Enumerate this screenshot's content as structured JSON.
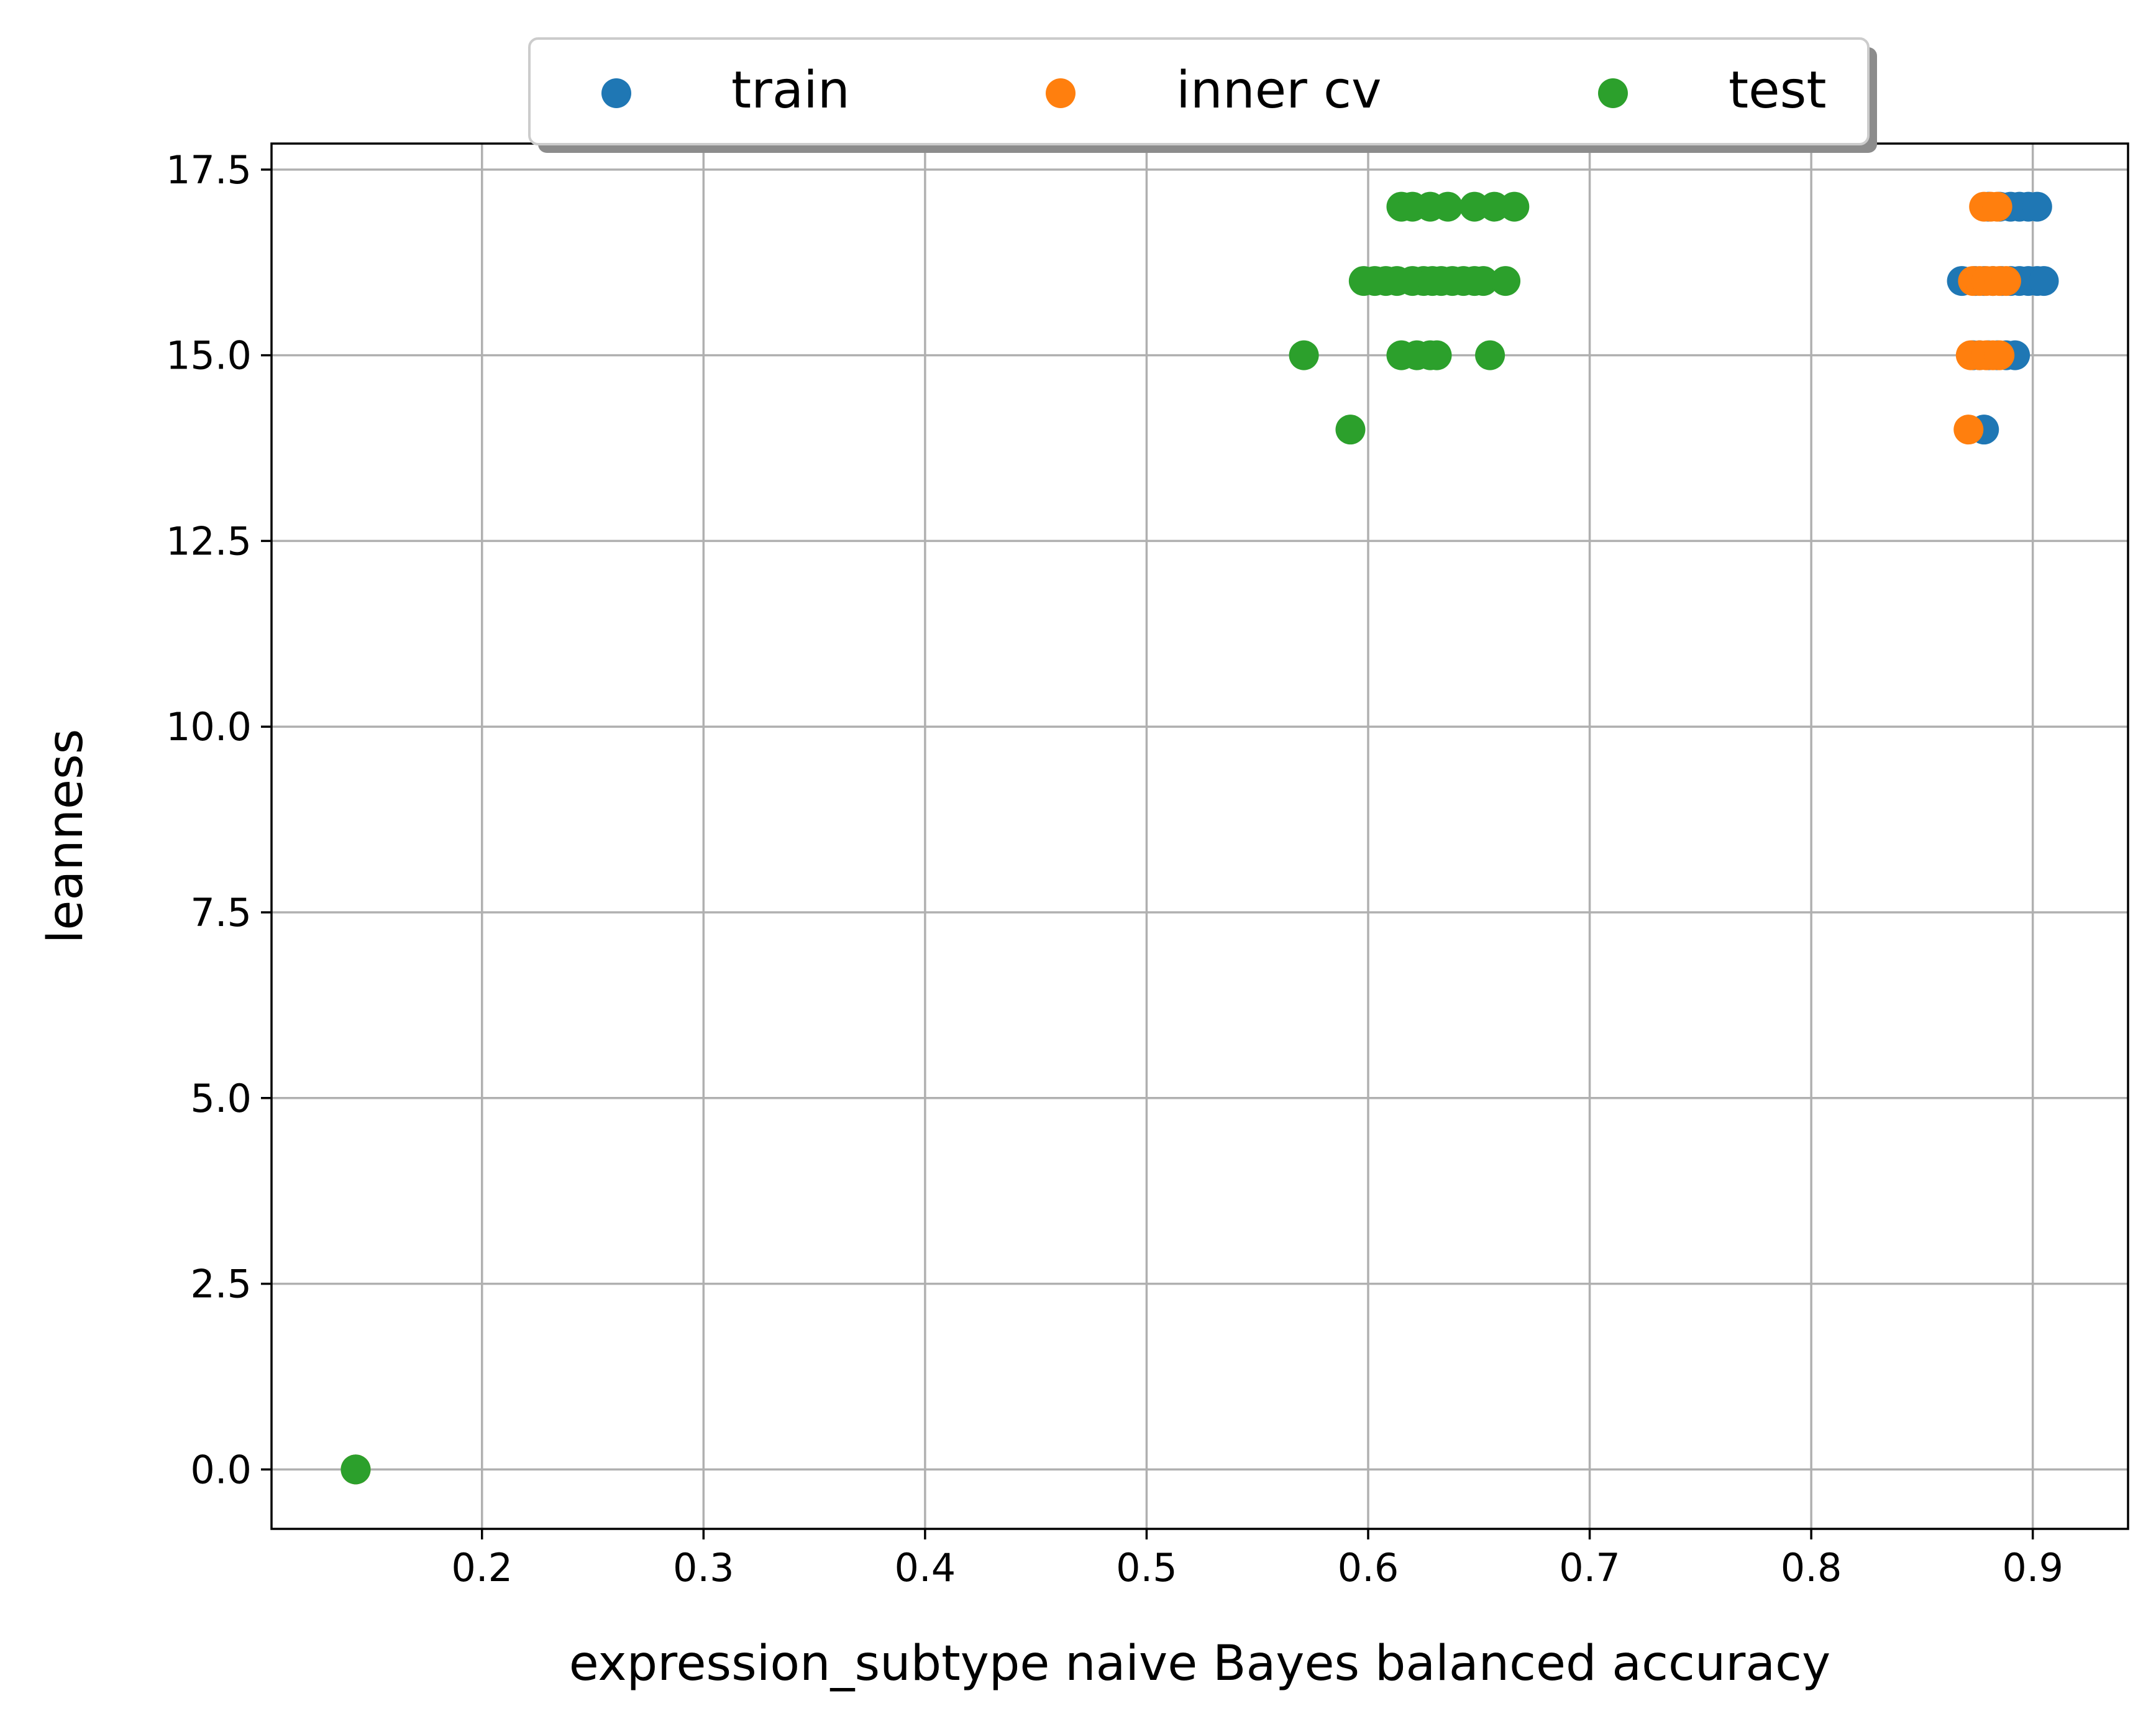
{
  "chart_data": {
    "type": "scatter",
    "xlabel": "expression_subtype naive Bayes balanced accuracy",
    "ylabel": "leanness",
    "xlim": [
      0.105,
      0.943
    ],
    "ylim": [
      -0.8,
      17.85
    ],
    "xticks": [
      0.2,
      0.3,
      0.4,
      0.5,
      0.6,
      0.7,
      0.8,
      0.9
    ],
    "xtick_labels": [
      "0.2",
      "0.3",
      "0.4",
      "0.5",
      "0.6",
      "0.7",
      "0.8",
      "0.9"
    ],
    "yticks": [
      0.0,
      2.5,
      5.0,
      7.5,
      10.0,
      12.5,
      15.0,
      17.5
    ],
    "ytick_labels": [
      "0.0",
      "2.5",
      "5.0",
      "7.5",
      "10.0",
      "12.5",
      "15.0",
      "17.5"
    ],
    "grid": true,
    "legend_position": "top-center",
    "series": [
      {
        "name": "train",
        "color": "#1f77b4",
        "points": [
          [
            0.143,
            0
          ],
          [
            0.878,
            14
          ],
          [
            0.873,
            15
          ],
          [
            0.876,
            15
          ],
          [
            0.88,
            15
          ],
          [
            0.884,
            15
          ],
          [
            0.888,
            15
          ],
          [
            0.892,
            15
          ],
          [
            0.868,
            16
          ],
          [
            0.874,
            16
          ],
          [
            0.878,
            16
          ],
          [
            0.882,
            16
          ],
          [
            0.886,
            16
          ],
          [
            0.89,
            16
          ],
          [
            0.894,
            16
          ],
          [
            0.898,
            16
          ],
          [
            0.902,
            16
          ],
          [
            0.905,
            16
          ],
          [
            0.88,
            17
          ],
          [
            0.885,
            17
          ],
          [
            0.89,
            17
          ],
          [
            0.894,
            17
          ],
          [
            0.898,
            17
          ],
          [
            0.902,
            17
          ]
        ]
      },
      {
        "name": "inner cv",
        "color": "#ff7f0e",
        "points": [
          [
            0.143,
            0
          ],
          [
            0.871,
            14
          ],
          [
            0.872,
            15
          ],
          [
            0.876,
            15
          ],
          [
            0.879,
            15
          ],
          [
            0.882,
            15
          ],
          [
            0.885,
            15
          ],
          [
            0.873,
            16
          ],
          [
            0.876,
            16
          ],
          [
            0.879,
            16
          ],
          [
            0.882,
            16
          ],
          [
            0.885,
            16
          ],
          [
            0.888,
            16
          ],
          [
            0.878,
            17
          ],
          [
            0.881,
            17
          ],
          [
            0.884,
            17
          ]
        ]
      },
      {
        "name": "test",
        "color": "#2ca02c",
        "points": [
          [
            0.143,
            0
          ],
          [
            0.592,
            14
          ],
          [
            0.571,
            15
          ],
          [
            0.615,
            15
          ],
          [
            0.622,
            15
          ],
          [
            0.628,
            15
          ],
          [
            0.631,
            15
          ],
          [
            0.655,
            15
          ],
          [
            0.598,
            16
          ],
          [
            0.603,
            16
          ],
          [
            0.608,
            16
          ],
          [
            0.613,
            16
          ],
          [
            0.62,
            16
          ],
          [
            0.625,
            16
          ],
          [
            0.629,
            16
          ],
          [
            0.633,
            16
          ],
          [
            0.638,
            16
          ],
          [
            0.643,
            16
          ],
          [
            0.648,
            16
          ],
          [
            0.652,
            16
          ],
          [
            0.662,
            16
          ],
          [
            0.615,
            17
          ],
          [
            0.62,
            17
          ],
          [
            0.628,
            17
          ],
          [
            0.636,
            17
          ],
          [
            0.648,
            17
          ],
          [
            0.657,
            17
          ],
          [
            0.666,
            17
          ]
        ]
      }
    ]
  }
}
